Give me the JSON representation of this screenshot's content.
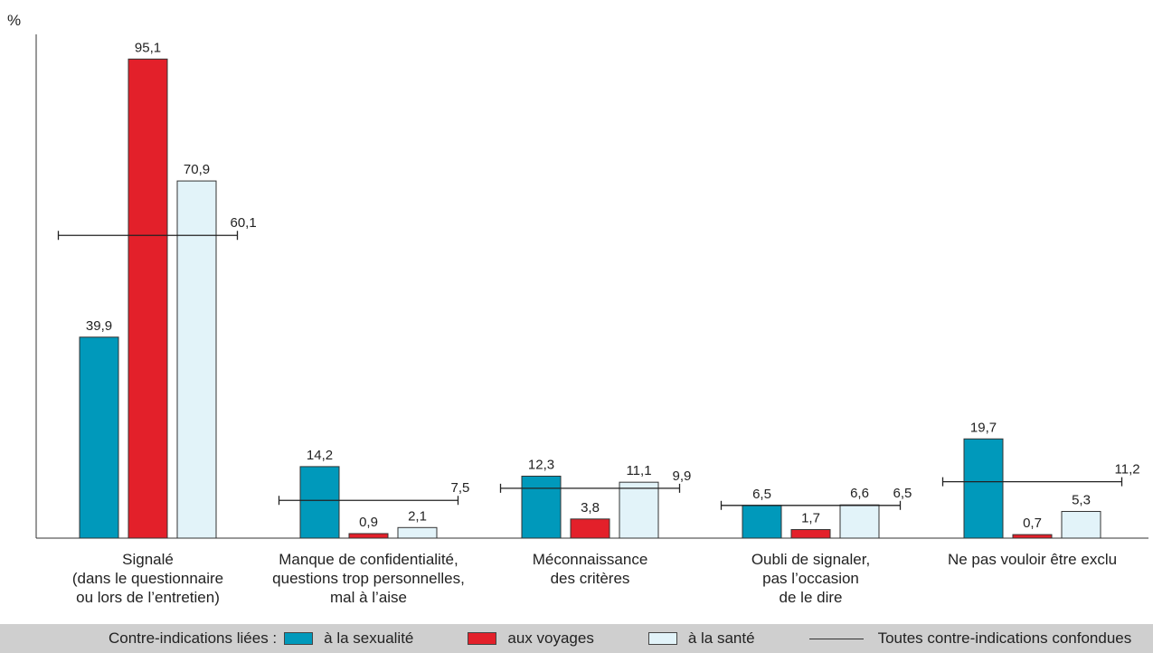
{
  "chart_data": {
    "type": "bar",
    "ylabel": "%",
    "ylim": [
      0,
      100
    ],
    "categories": [
      [
        "Signalé",
        "(dans le questionnaire",
        "ou lors de l’entretien)"
      ],
      [
        "Manque de confidentialité,",
        "questions trop personnelles,",
        "mal à l’aise"
      ],
      [
        "Méconnaissance",
        "des critères"
      ],
      [
        "Oubli de signaler,",
        "pas l’occasion",
        "de le dire"
      ],
      [
        "Ne pas vouloir être exclu"
      ]
    ],
    "series": [
      {
        "name": "à la sexualité",
        "color": "#0099bb",
        "values": [
          39.9,
          14.2,
          12.3,
          6.5,
          19.7
        ],
        "labels": [
          "39,9",
          "14,2",
          "12,3",
          "6,5",
          "19,7"
        ]
      },
      {
        "name": "aux voyages",
        "color": "#e3202a",
        "values": [
          95.1,
          0.9,
          3.8,
          1.7,
          0.7
        ],
        "labels": [
          "95,1",
          "0,9",
          "3,8",
          "1,7",
          "0,7"
        ]
      },
      {
        "name": "à la santé",
        "color": "#e2f3f9",
        "values": [
          70.9,
          2.1,
          11.1,
          6.6,
          5.3
        ],
        "labels": [
          "70,9",
          "2,1",
          "11,1",
          "6,6",
          "5,3"
        ]
      }
    ],
    "overall": {
      "name": "Toutes contre-indications confondues",
      "values": [
        60.1,
        7.5,
        9.9,
        6.5,
        11.2
      ],
      "labels": [
        "60,1",
        "7,5",
        "9,9",
        "6,5",
        "11,2"
      ]
    },
    "legend": {
      "title": "Contre-indications liées :",
      "placement": "bottom"
    },
    "grid": false
  }
}
